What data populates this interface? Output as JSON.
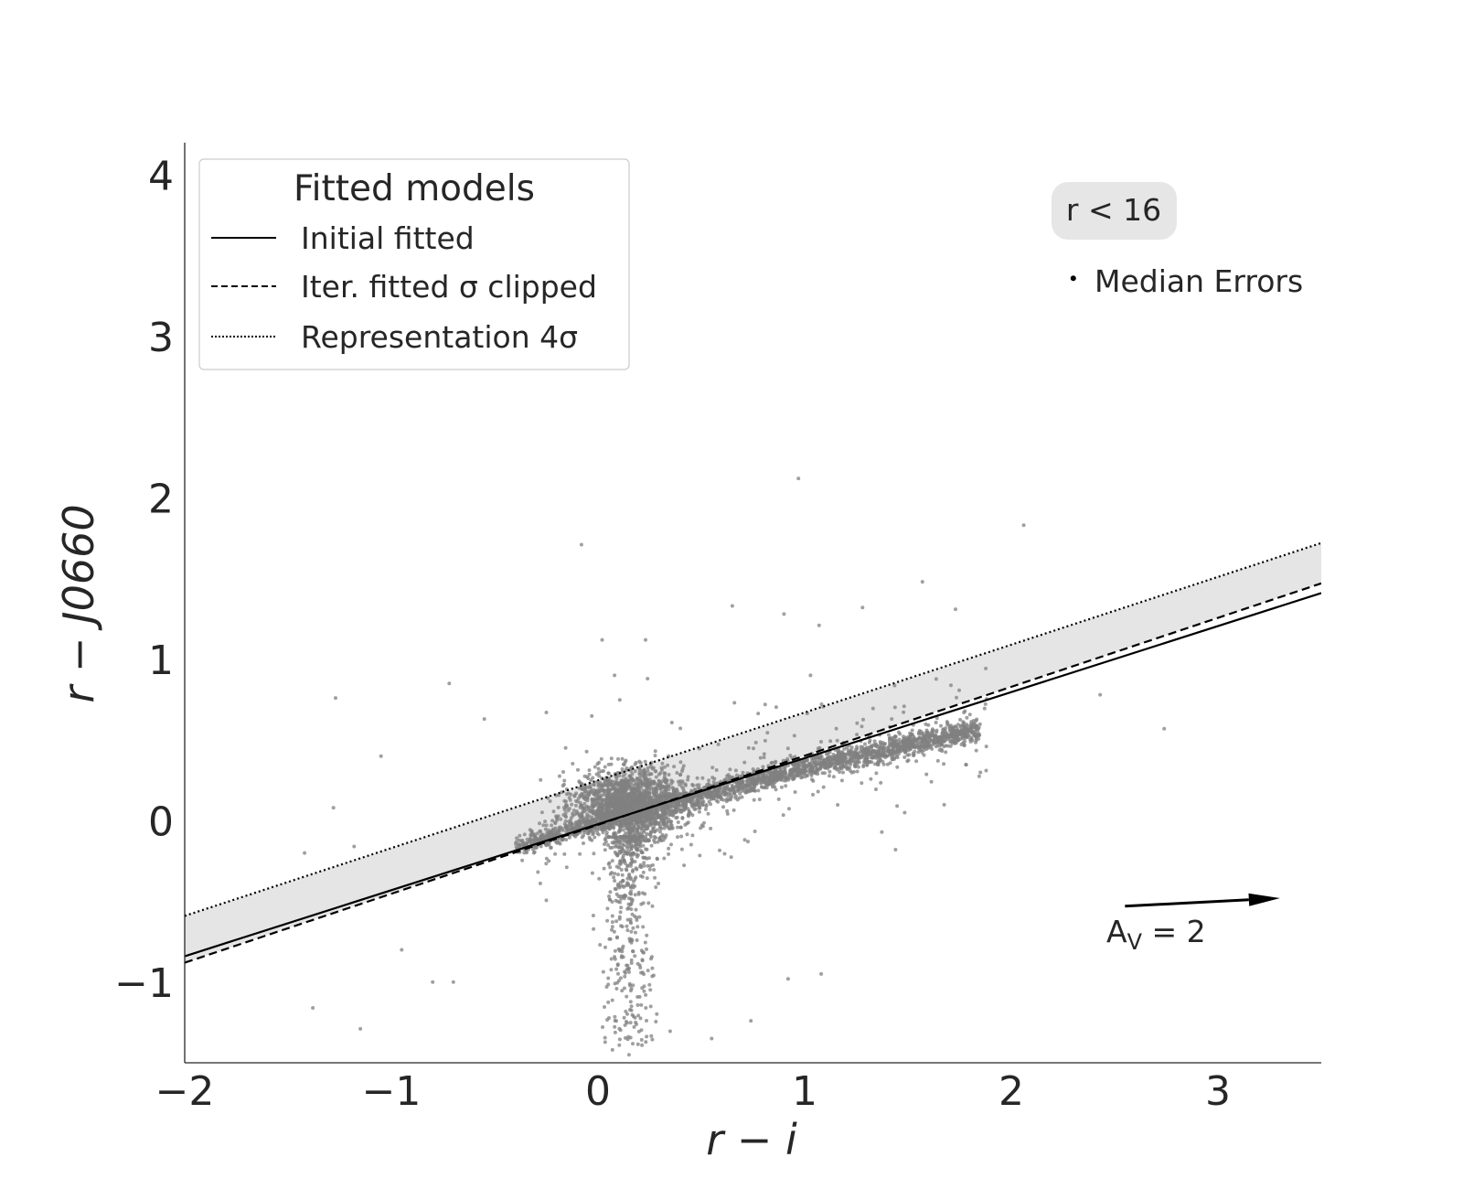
{
  "chart_data": {
    "type": "scatter",
    "title": "",
    "xlabel": "r − i",
    "ylabel": "r − J0660",
    "xlim": [
      -2.0,
      3.5
    ],
    "ylim": [
      -1.5,
      4.2
    ],
    "xticks": [
      -2,
      -1,
      0,
      1,
      2,
      3
    ],
    "yticks": [
      -1,
      0,
      1,
      2,
      3,
      4
    ],
    "xtick_labels": [
      "−2",
      "−1",
      "0",
      "1",
      "2",
      "3"
    ],
    "ytick_labels": [
      "−1",
      "0",
      "1",
      "2",
      "3",
      "4"
    ],
    "grid": false,
    "legend": {
      "placement": "top-left",
      "title": "Fitted models",
      "entries": [
        {
          "label": "Initial fitted",
          "style": "solid"
        },
        {
          "label": "Iter. fitted σ clipped",
          "style": "dashed"
        },
        {
          "label": "Representation 4σ",
          "style": "dotted"
        }
      ]
    },
    "lines": [
      {
        "label": "Initial fitted",
        "style": "solid",
        "x": [
          -2.0,
          3.5
        ],
        "y": [
          -0.84,
          1.41
        ]
      },
      {
        "label": "Iter. fitted σ clipped",
        "style": "dashed",
        "x": [
          -2.0,
          3.5
        ],
        "y": [
          -0.88,
          1.47
        ]
      },
      {
        "label": "Representation 4σ",
        "style": "dotted",
        "x": [
          -2.0,
          3.5
        ],
        "y": [
          -0.59,
          1.72
        ]
      }
    ],
    "band": {
      "x": [
        -2.0,
        3.5
      ],
      "lower": [
        -0.88,
        1.47
      ],
      "upper": [
        -0.59,
        1.72
      ],
      "color": "#e5e5e5"
    },
    "scatter": {
      "color": "#808080",
      "main_locus": {
        "x_range": [
          -0.4,
          1.85
        ],
        "y_at_x": [
          [
            -0.4,
            -0.17
          ],
          [
            0.0,
            0.0
          ],
          [
            0.5,
            0.15
          ],
          [
            1.0,
            0.33
          ],
          [
            1.5,
            0.47
          ],
          [
            1.8,
            0.55
          ]
        ]
      },
      "core_blob": {
        "x": 0.15,
        "y": 0.1
      },
      "vertical_spur": {
        "x": 0.15,
        "y_range": [
          -1.45,
          -0.1
        ]
      },
      "outliers": [
        [
          -1.27,
          0.76
        ],
        [
          -1.05,
          0.4
        ],
        [
          -0.72,
          0.85
        ],
        [
          -0.55,
          0.63
        ],
        [
          -0.08,
          1.71
        ],
        [
          0.02,
          1.12
        ],
        [
          0.23,
          1.12
        ],
        [
          0.97,
          2.12
        ],
        [
          0.65,
          1.33
        ],
        [
          0.9,
          1.28
        ],
        [
          1.07,
          1.21
        ],
        [
          1.28,
          1.32
        ],
        [
          1.57,
          1.48
        ],
        [
          1.73,
          1.31
        ],
        [
          2.06,
          1.83
        ],
        [
          2.43,
          0.78
        ],
        [
          2.74,
          0.57
        ],
        [
          -1.42,
          -0.2
        ],
        [
          -1.28,
          0.08
        ],
        [
          -1.18,
          -0.16
        ],
        [
          -0.95,
          -0.8
        ],
        [
          -0.8,
          -1.0
        ],
        [
          -0.7,
          -1.0
        ],
        [
          -1.38,
          -1.16
        ],
        [
          -1.15,
          -1.29
        ],
        [
          0.55,
          -1.35
        ],
        [
          0.74,
          -1.24
        ],
        [
          0.92,
          -0.98
        ],
        [
          1.08,
          -0.95
        ],
        [
          0.07,
          -1.42
        ],
        [
          0.15,
          -1.45
        ],
        [
          1.44,
          -0.18
        ],
        [
          0.24,
          0.88
        ],
        [
          0.08,
          0.9
        ],
        [
          -0.25,
          0.67
        ],
        [
          0.66,
          0.73
        ]
      ]
    },
    "annotations": {
      "subset_label": "r < 16",
      "median_errors_label": "Median Errors",
      "median_errors_point": {
        "x": 2.3,
        "y": 3.36
      },
      "reddening_vector": {
        "label_main": "A",
        "label_sub": "V",
        "label_rest": " = 2",
        "from": [
          2.55,
          -0.53
        ],
        "to": [
          3.3,
          -0.48
        ]
      }
    }
  }
}
